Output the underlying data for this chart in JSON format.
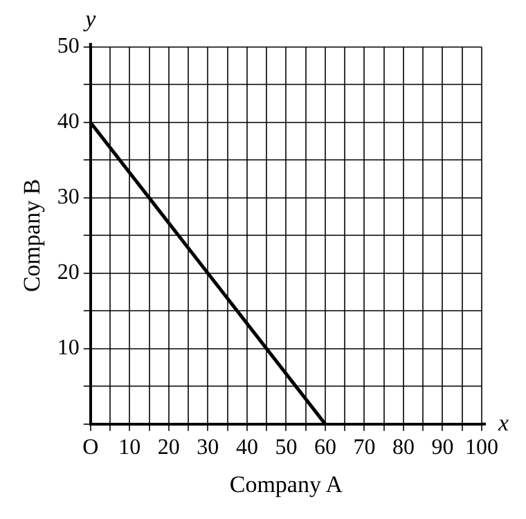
{
  "chart_data": {
    "type": "line",
    "xlabel": "Company A",
    "ylabel": "Company B",
    "x": [
      0,
      60
    ],
    "series": [
      {
        "color": "#000000",
        "values": [
          40,
          0
        ]
      }
    ],
    "xlim": [
      0,
      100
    ],
    "ylim": [
      0,
      50
    ],
    "xticks": [
      {
        "value": 0,
        "label": "O"
      },
      {
        "value": 5,
        "label": null
      },
      10,
      {
        "value": 15,
        "label": null
      },
      20,
      {
        "value": 25,
        "label": null
      },
      30,
      {
        "value": 35,
        "label": null
      },
      40,
      {
        "value": 45,
        "label": null
      },
      50,
      {
        "value": 55,
        "label": null
      },
      60,
      {
        "value": 65,
        "label": null
      },
      70,
      {
        "value": 75,
        "label": null
      },
      80,
      {
        "value": 85,
        "label": null
      },
      90,
      {
        "value": 95,
        "label": null
      },
      100
    ],
    "yticks": [
      {
        "value": 0,
        "label": null
      },
      {
        "value": 5,
        "label": null
      },
      10,
      {
        "value": 15,
        "label": null
      },
      20,
      {
        "value": 25,
        "label": null
      },
      30,
      {
        "value": 35,
        "label": null
      },
      40,
      {
        "value": 45,
        "label": null
      },
      50
    ],
    "grid": true,
    "marker": "none",
    "line_style": "solid",
    "annotations": [
      "x",
      "y"
    ]
  }
}
